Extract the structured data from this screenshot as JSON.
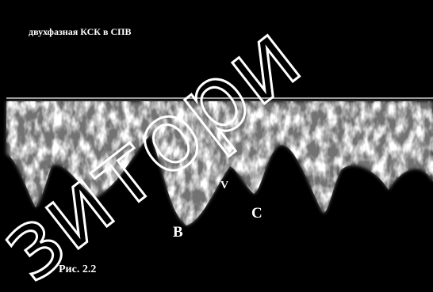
{
  "header": {
    "title": "двухфазная КСК в СПВ"
  },
  "labels": {
    "v": "V",
    "b": "B",
    "c": "C"
  },
  "caption": "Рис. 2.2",
  "watermark": "зитори"
}
